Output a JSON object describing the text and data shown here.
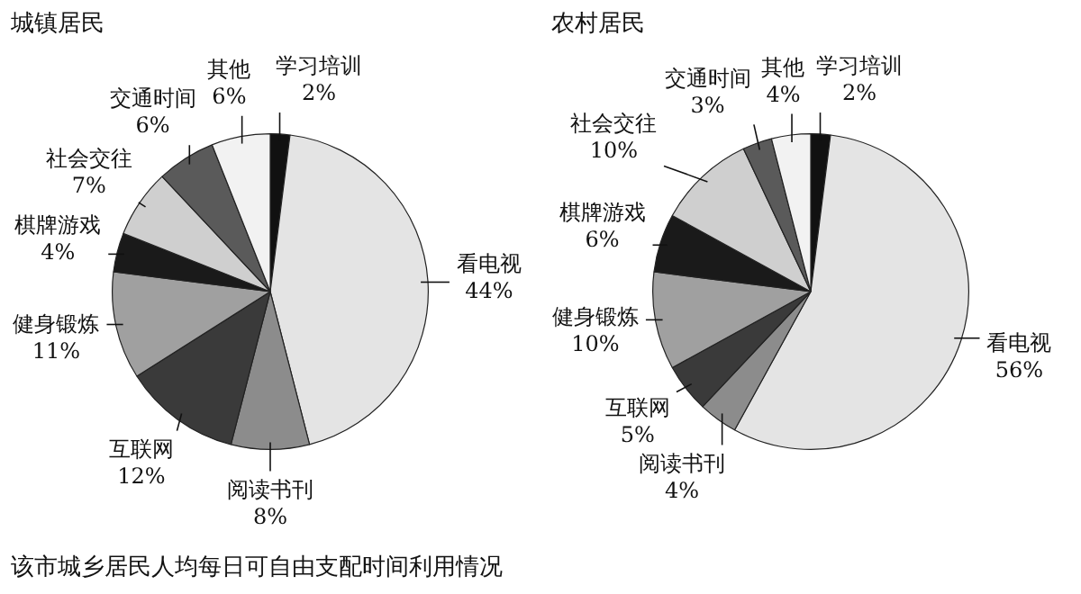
{
  "chart_data": [
    {
      "type": "pie",
      "title": "城镇居民",
      "categories": [
        "学习培训",
        "看电视",
        "阅读书刊",
        "互联网",
        "健身锻炼",
        "棋牌游戏",
        "社会交往",
        "交通时间",
        "其他"
      ],
      "values": [
        2,
        44,
        8,
        12,
        11,
        4,
        7,
        6,
        6
      ],
      "value_labels": [
        "2%",
        "44%",
        "8%",
        "12%",
        "11%",
        "4%",
        "7%",
        "6%",
        "6%"
      ],
      "colors": [
        "#111111",
        "#e4e4e4",
        "#8c8c8c",
        "#3a3a3a",
        "#a0a0a0",
        "#1a1a1a",
        "#cfcfcf",
        "#5a5a5a",
        "#f2f2f2"
      ],
      "legend": false,
      "annotations": [
        "该市城乡居民人均每日可自由支配时间利用情况"
      ]
    },
    {
      "type": "pie",
      "title": "农村居民",
      "categories": [
        "学习培训",
        "看电视",
        "阅读书刊",
        "互联网",
        "健身锻炼",
        "棋牌游戏",
        "社会交往",
        "交通时间",
        "其他"
      ],
      "values": [
        2,
        56,
        4,
        5,
        10,
        6,
        10,
        3,
        4
      ],
      "value_labels": [
        "2%",
        "56%",
        "4%",
        "5%",
        "10%",
        "6%",
        "10%",
        "3%",
        "4%"
      ],
      "colors": [
        "#111111",
        "#e4e4e4",
        "#8c8c8c",
        "#3a3a3a",
        "#a0a0a0",
        "#1a1a1a",
        "#cfcfcf",
        "#5a5a5a",
        "#f2f2f2"
      ],
      "legend": false
    }
  ]
}
